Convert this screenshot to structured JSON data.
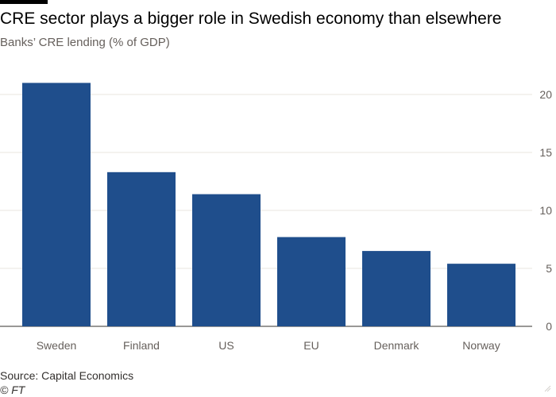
{
  "header": {
    "title": "CRE sector plays a bigger role in Swedish economy than elsewhere",
    "subtitle": "Banks’ CRE lending (% of GDP)"
  },
  "footer": {
    "source": "Source: Capital Economics",
    "logo": "© FT"
  },
  "colors": {
    "bar": "#1f4e8c",
    "gridline": "#e9e5df",
    "axis": "#33302e"
  },
  "chart_data": {
    "type": "bar",
    "title": "CRE sector plays a bigger role in Swedish economy than elsewhere",
    "subtitle": "Banks’ CRE lending (% of GDP)",
    "categories": [
      "Sweden",
      "Finland",
      "US",
      "EU",
      "Denmark",
      "Norway"
    ],
    "values": [
      21.0,
      13.3,
      11.4,
      7.7,
      6.5,
      5.4
    ],
    "ylim": [
      0,
      20
    ],
    "yticks": [
      0,
      5,
      10,
      15,
      20
    ],
    "yaxis_position": "right",
    "grid": true,
    "legend": "none"
  }
}
